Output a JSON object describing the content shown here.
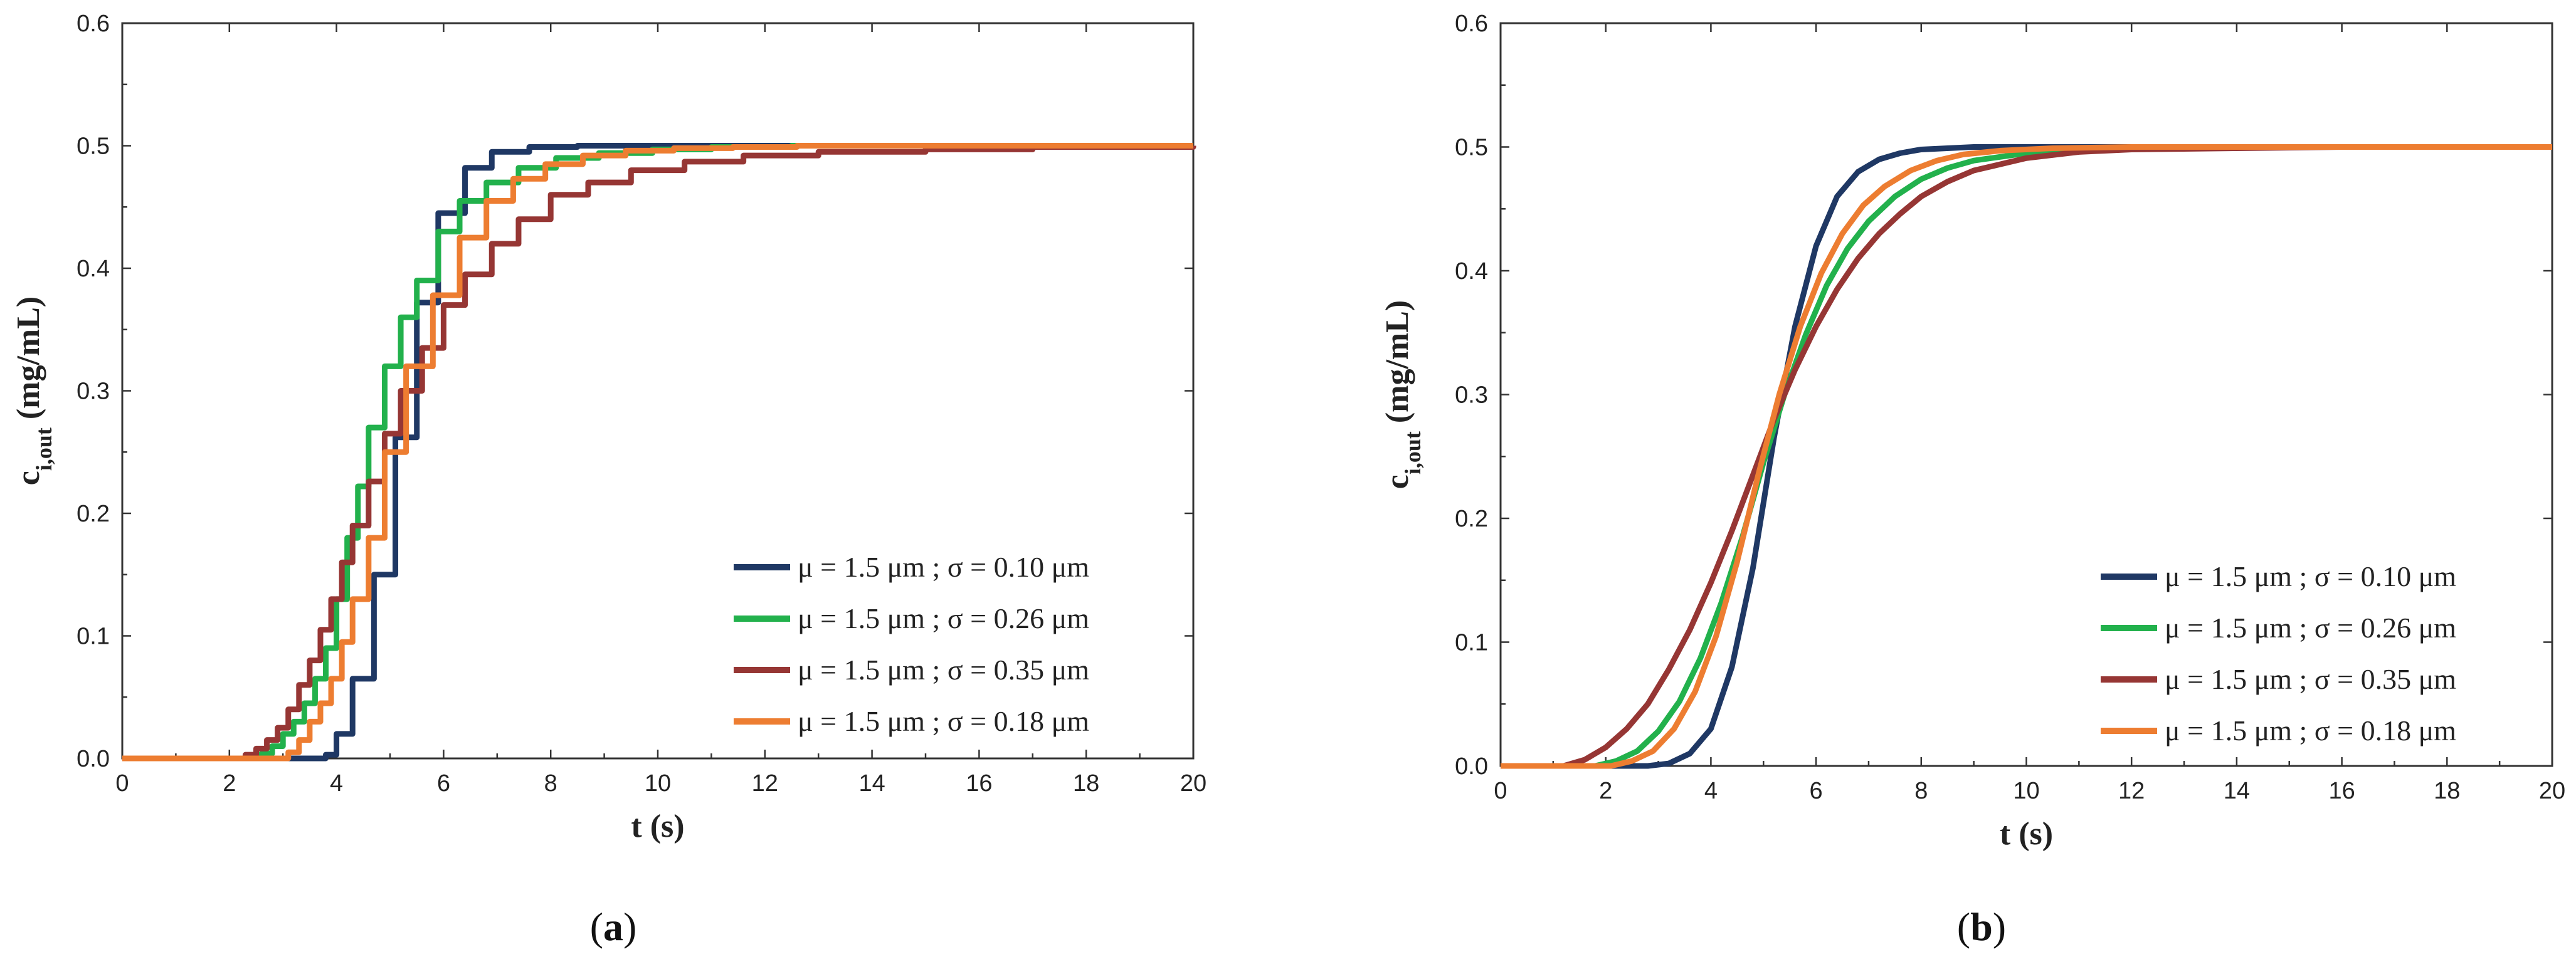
{
  "series_colors": {
    "s010": "#1f3864",
    "s026": "#22b14c",
    "s035": "#963634",
    "s018": "#ed7d31"
  },
  "chart_data": [
    {
      "type": "line",
      "panel": "a",
      "panel_label": "a",
      "style": "step",
      "xlabel": "t (s)",
      "ylabel_main": "c",
      "ylabel_sub": "i,out",
      "ylabel_unit": " (mg/mL)",
      "xlim": [
        0,
        20
      ],
      "ylim": [
        0,
        0.6
      ],
      "xticks": [
        0,
        2,
        4,
        6,
        8,
        10,
        12,
        14,
        16,
        18,
        20
      ],
      "yticks": [
        0.0,
        0.1,
        0.2,
        0.3,
        0.4,
        0.5,
        0.6
      ],
      "xtick_labels": [
        "0",
        "2",
        "4",
        "6",
        "8",
        "10",
        "12",
        "14",
        "16",
        "18",
        "20"
      ],
      "ytick_labels": [
        "0.0",
        "0.1",
        "0.2",
        "0.3",
        "0.4",
        "0.5",
        "0.6"
      ],
      "legend_position": "right-middle",
      "series": [
        {
          "name": "μ = 1.5 μm ; σ = 0.10 μm",
          "color": "#1f3864",
          "x": [
            0,
            3.7,
            3.8,
            4.0,
            4.3,
            4.7,
            5.1,
            5.5,
            5.9,
            6.4,
            6.9,
            7.6,
            8.5,
            10,
            20
          ],
          "y": [
            0,
            0,
            0.003,
            0.02,
            0.065,
            0.15,
            0.262,
            0.372,
            0.445,
            0.482,
            0.495,
            0.499,
            0.5,
            0.5,
            0.5
          ]
        },
        {
          "name": "μ = 1.5 μm ; σ = 0.26 μm",
          "color": "#22b14c",
          "x": [
            0,
            2.4,
            2.6,
            2.8,
            3.0,
            3.2,
            3.4,
            3.6,
            3.8,
            4.0,
            4.2,
            4.4,
            4.6,
            4.9,
            5.2,
            5.5,
            5.9,
            6.3,
            6.8,
            7.4,
            8.1,
            8.9,
            9.9,
            11.0,
            12.5,
            14.5,
            20
          ],
          "y": [
            0,
            0,
            0.004,
            0.01,
            0.02,
            0.03,
            0.045,
            0.065,
            0.09,
            0.13,
            0.18,
            0.222,
            0.27,
            0.32,
            0.36,
            0.39,
            0.43,
            0.455,
            0.47,
            0.482,
            0.49,
            0.494,
            0.497,
            0.499,
            0.5,
            0.5,
            0.5
          ]
        },
        {
          "name": "μ = 1.5 μm ; σ = 0.35 μm",
          "color": "#963634",
          "x": [
            0,
            2.1,
            2.3,
            2.5,
            2.7,
            2.9,
            3.1,
            3.3,
            3.5,
            3.7,
            3.9,
            4.1,
            4.3,
            4.6,
            4.9,
            5.2,
            5.6,
            6.0,
            6.4,
            6.9,
            7.4,
            8.0,
            8.7,
            9.5,
            10.5,
            11.6,
            13.0,
            15.0,
            17.0,
            20
          ],
          "y": [
            0,
            0,
            0.003,
            0.008,
            0.015,
            0.025,
            0.04,
            0.06,
            0.08,
            0.105,
            0.13,
            0.16,
            0.19,
            0.226,
            0.265,
            0.3,
            0.335,
            0.37,
            0.395,
            0.42,
            0.44,
            0.46,
            0.47,
            0.48,
            0.487,
            0.492,
            0.495,
            0.497,
            0.499,
            0.5
          ]
        },
        {
          "name": "μ = 1.5 μm ; σ = 0.18 μm",
          "color": "#ed7d31",
          "x": [
            0,
            2.9,
            3.1,
            3.3,
            3.5,
            3.7,
            3.9,
            4.1,
            4.3,
            4.6,
            4.9,
            5.3,
            5.8,
            6.3,
            6.8,
            7.3,
            7.9,
            8.6,
            9.4,
            10.3,
            11.4,
            12.6,
            14.5,
            20
          ],
          "y": [
            0,
            0,
            0.005,
            0.015,
            0.03,
            0.045,
            0.065,
            0.095,
            0.13,
            0.18,
            0.25,
            0.32,
            0.378,
            0.425,
            0.455,
            0.473,
            0.485,
            0.492,
            0.496,
            0.498,
            0.499,
            0.5,
            0.5,
            0.5
          ]
        }
      ]
    },
    {
      "type": "line",
      "panel": "b",
      "panel_label": "b",
      "style": "smooth",
      "xlabel": "t (s)",
      "ylabel_main": "c",
      "ylabel_sub": "i,out",
      "ylabel_unit": " (mg/mL)",
      "xlim": [
        0,
        20
      ],
      "ylim": [
        0,
        0.6
      ],
      "xticks": [
        0,
        2,
        4,
        6,
        8,
        10,
        12,
        14,
        16,
        18,
        20
      ],
      "yticks": [
        0.0,
        0.1,
        0.2,
        0.3,
        0.4,
        0.5,
        0.6
      ],
      "xtick_labels": [
        "0",
        "2",
        "4",
        "6",
        "8",
        "10",
        "12",
        "14",
        "16",
        "18",
        "20"
      ],
      "ytick_labels": [
        "0.0",
        "0.1",
        "0.2",
        "0.3",
        "0.4",
        "0.5",
        "0.6"
      ],
      "legend_position": "right-middle",
      "series": [
        {
          "name": "μ = 1.5 μm ; σ = 0.10 μm",
          "color": "#1f3864",
          "x": [
            0,
            2.8,
            3.2,
            3.6,
            4.0,
            4.4,
            4.8,
            5.2,
            5.6,
            6.0,
            6.4,
            6.8,
            7.2,
            7.6,
            8.0,
            8.5,
            9.0,
            10,
            12,
            20
          ],
          "y": [
            0,
            0,
            0.002,
            0.01,
            0.03,
            0.08,
            0.16,
            0.265,
            0.355,
            0.42,
            0.46,
            0.48,
            0.49,
            0.495,
            0.498,
            0.499,
            0.5,
            0.5,
            0.5,
            0.5
          ]
        },
        {
          "name": "μ = 1.5 μm ; σ = 0.26 μm",
          "color": "#22b14c",
          "x": [
            0,
            1.8,
            2.2,
            2.6,
            3.0,
            3.4,
            3.8,
            4.2,
            4.6,
            5.0,
            5.4,
            5.8,
            6.2,
            6.6,
            7.0,
            7.5,
            8.0,
            8.5,
            9.0,
            10,
            11,
            12,
            14,
            20
          ],
          "y": [
            0,
            0,
            0.004,
            0.012,
            0.028,
            0.052,
            0.087,
            0.132,
            0.185,
            0.245,
            0.3,
            0.348,
            0.388,
            0.418,
            0.44,
            0.46,
            0.474,
            0.483,
            0.489,
            0.495,
            0.498,
            0.499,
            0.5,
            0.5
          ]
        },
        {
          "name": "μ = 1.5 μm ; σ = 0.35 μm",
          "color": "#963634",
          "x": [
            0,
            1.2,
            1.6,
            2.0,
            2.4,
            2.8,
            3.2,
            3.6,
            4.0,
            4.4,
            4.8,
            5.2,
            5.6,
            6.0,
            6.4,
            6.8,
            7.2,
            7.6,
            8.0,
            8.5,
            9.0,
            10,
            11,
            12,
            14,
            16,
            20
          ],
          "y": [
            0,
            0,
            0.005,
            0.015,
            0.03,
            0.05,
            0.078,
            0.11,
            0.148,
            0.19,
            0.235,
            0.28,
            0.32,
            0.355,
            0.385,
            0.41,
            0.43,
            0.446,
            0.46,
            0.472,
            0.481,
            0.491,
            0.496,
            0.498,
            0.499,
            0.5,
            0.5
          ]
        },
        {
          "name": "μ = 1.5 μm ; σ = 0.18 μm",
          "color": "#ed7d31",
          "x": [
            0,
            2.1,
            2.5,
            2.9,
            3.3,
            3.7,
            4.1,
            4.5,
            4.9,
            5.3,
            5.7,
            6.1,
            6.5,
            6.9,
            7.3,
            7.8,
            8.3,
            8.8,
            9.5,
            10.5,
            12,
            20
          ],
          "y": [
            0,
            0,
            0.004,
            0.012,
            0.03,
            0.06,
            0.105,
            0.165,
            0.235,
            0.3,
            0.355,
            0.398,
            0.43,
            0.453,
            0.468,
            0.481,
            0.489,
            0.494,
            0.497,
            0.499,
            0.5,
            0.5
          ]
        }
      ]
    }
  ]
}
